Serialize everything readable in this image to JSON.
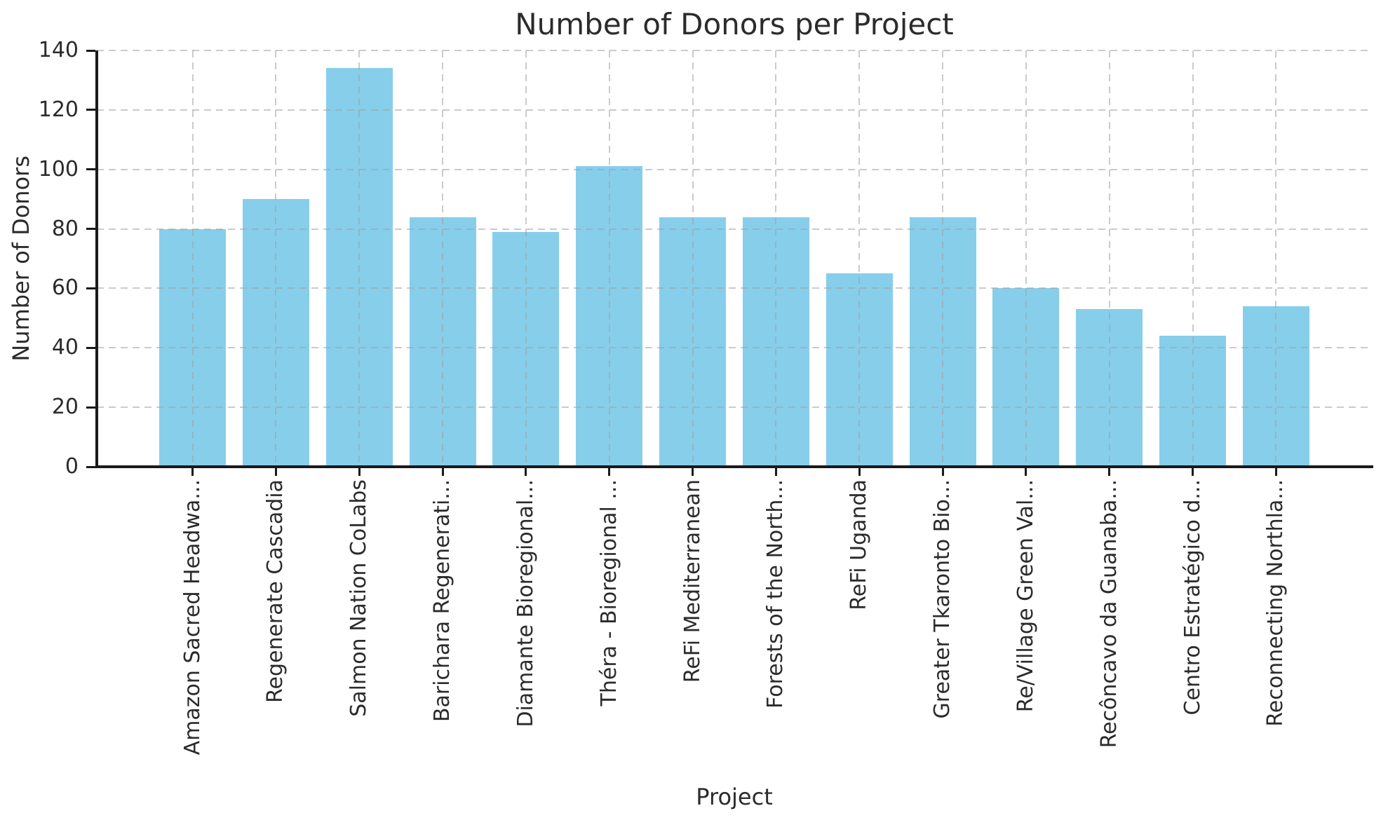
{
  "chart_data": {
    "type": "bar",
    "title": "Number of Donors per Project",
    "xlabel": "Project",
    "ylabel": "Number of Donors",
    "categories": [
      "Amazon Sacred Headwa...",
      "Regenerate Cascadia",
      "Salmon Nation CoLabs",
      "Barichara Regenerati...",
      "Diamante Bioregional...",
      "Théra - Bioregional ...",
      "ReFi Mediterranean",
      "Forests of the North...",
      "ReFi Uganda",
      "Greater Tkaronto Bio...",
      "Re/Village Green Val...",
      "Recôncavo da Guanaba...",
      "Centro Estratégico d...",
      "Reconnecting Northla..."
    ],
    "values": [
      80,
      90,
      134,
      84,
      79,
      101,
      84,
      84,
      65,
      84,
      60,
      53,
      44,
      54
    ],
    "ylim": [
      0,
      140
    ],
    "yticks": [
      0,
      20,
      40,
      60,
      80,
      100,
      120,
      140
    ],
    "x_tick_rotation": 90,
    "grid": true,
    "grid_linestyle": "dashed",
    "legend": "none",
    "bar_color": "#87CEEB",
    "spine_color": "#1a1a1a",
    "text_color": "#2b2b2b",
    "background_color": "#ffffff"
  }
}
